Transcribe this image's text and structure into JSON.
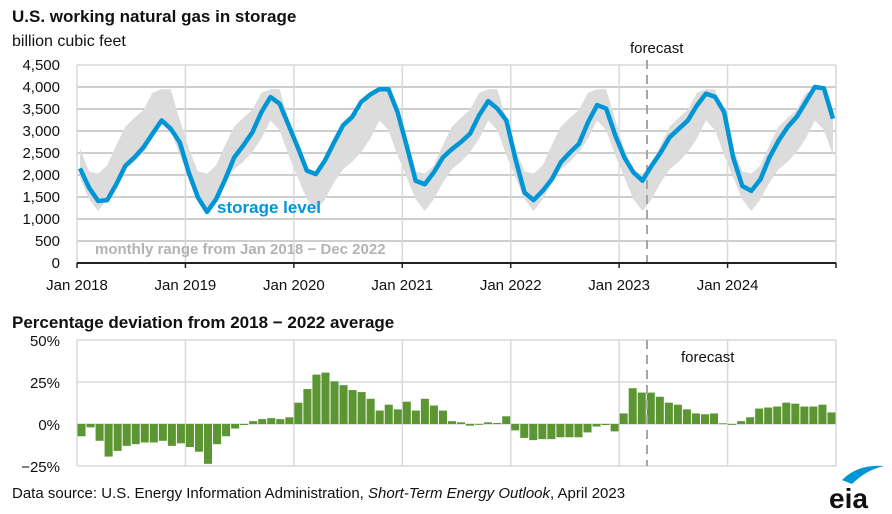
{
  "chart_data": [
    {
      "type": "line",
      "title": "U.S. working natural gas in storage",
      "ylabel": "billion cubic feet",
      "ylim": [
        0,
        4500
      ],
      "yticks": [
        "0",
        "500",
        "1,000",
        "1,500",
        "2,000",
        "2,500",
        "3,000",
        "3,500",
        "4,000",
        "4,500"
      ],
      "xticks": [
        "Jan 2018",
        "Jan 2019",
        "Jan 2020",
        "Jan 2021",
        "Jan 2022",
        "Jan 2023",
        "Jan 2024"
      ],
      "x_start": "Jan 2018",
      "x_end": "Dec 2024",
      "forecast_start": "Apr 2023",
      "forecast_label": "forecast",
      "grid": true,
      "series": [
        {
          "name": "storage level",
          "color": "#0096d6",
          "values": [
            2150,
            1710,
            1410,
            1430,
            1790,
            2210,
            2400,
            2630,
            2940,
            3240,
            3050,
            2740,
            2050,
            1490,
            1160,
            1450,
            1900,
            2400,
            2670,
            2970,
            3430,
            3770,
            3620,
            3130,
            2630,
            2100,
            2020,
            2330,
            2740,
            3130,
            3320,
            3660,
            3830,
            3950,
            3950,
            3430,
            2670,
            1870,
            1790,
            2060,
            2400,
            2590,
            2750,
            2940,
            3360,
            3680,
            3510,
            3240,
            2360,
            1600,
            1430,
            1640,
            1900,
            2290,
            2510,
            2710,
            3200,
            3590,
            3510,
            2900,
            2400,
            2060,
            1870,
            2210,
            2510,
            2860,
            3050,
            3240,
            3580,
            3850,
            3775,
            3430,
            2400,
            1750,
            1640,
            1900,
            2400,
            2780,
            3090,
            3320,
            3660,
            4000,
            3970,
            3280
          ]
        }
      ],
      "range_band": {
        "name": "monthly range from Jan 2018 − Dec 2022",
        "color": "#dcdcdc",
        "monthly_max": [
          2600,
          2080,
          2030,
          2220,
          2680,
          3100,
          3300,
          3480,
          3870,
          3950,
          3950,
          3250
        ],
        "monthly_min": [
          1950,
          1450,
          1180,
          1450,
          1830,
          2130,
          2300,
          2520,
          2830,
          3240,
          3020,
          2450
        ]
      }
    },
    {
      "type": "bar",
      "title": "Percentage deviation from 2018 − 2022 average",
      "ylim": [
        -25,
        50
      ],
      "yticks": [
        "−25%",
        "0%",
        "25%",
        "50%"
      ],
      "x_start": "Jan 2018",
      "x_end": "Dec 2024",
      "forecast_start": "Apr 2023",
      "forecast_label": "forecast",
      "color": "#5b9632",
      "grid": true,
      "values": [
        -7.3,
        -2,
        -10,
        -19.4,
        -16,
        -13,
        -12,
        -11,
        -11,
        -10,
        -13,
        -11.5,
        -13.7,
        -16.5,
        -23.7,
        -12,
        -7.3,
        -2.7,
        -0.6,
        1.7,
        2.9,
        3.5,
        2.9,
        4,
        12.7,
        20.8,
        29.4,
        30.6,
        25.4,
        23.1,
        20.2,
        19,
        15,
        8,
        11.5,
        8.7,
        13.3,
        8,
        15,
        11,
        8,
        1.7,
        1,
        -1,
        -0.4,
        1,
        0.6,
        4.6,
        -3.8,
        -8.3,
        -9.6,
        -9,
        -9,
        -7.9,
        -7.9,
        -7.9,
        -5,
        -1.5,
        -0.6,
        -4.4,
        6.3,
        21.3,
        18.7,
        18.7,
        16.2,
        12.7,
        11.5,
        8.7,
        6.3,
        5.8,
        6.3,
        0.4,
        -0.4,
        1.7,
        4,
        9.2,
        9.8,
        10.4,
        12.7,
        12.1,
        10.4,
        10.4,
        11.5,
        6.9
      ]
    }
  ],
  "footer": {
    "source_prefix": "Data source: U.S. Energy Information Administration, ",
    "source_italic": "Short-Term Energy Outlook",
    "source_suffix": ", April 2023",
    "logo_text": "eia",
    "logo_color": "#0096d6"
  }
}
